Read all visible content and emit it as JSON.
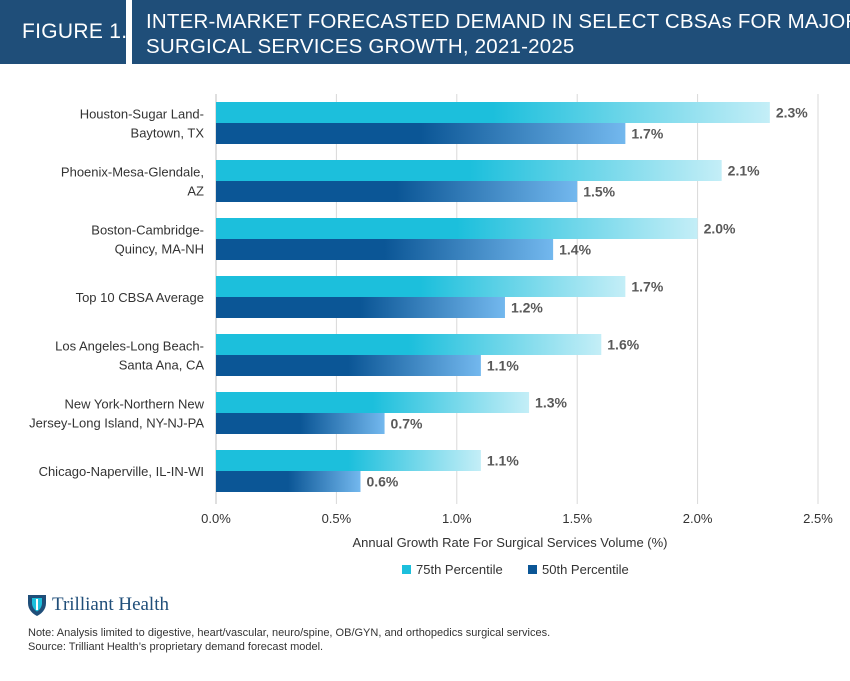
{
  "header": {
    "figure_label": "FIGURE 1.",
    "title_line1": "INTER-MARKET FORECASTED DEMAND IN SELECT CBSAs FOR MAJOR",
    "title_line2": "SURGICAL SERVICES GROWTH, 2021-2025"
  },
  "chart_data": {
    "type": "bar",
    "orientation": "horizontal",
    "title": "INTER-MARKET FORECASTED DEMAND IN SELECT CBSAs FOR MAJOR SURGICAL SERVICES GROWTH, 2021-2025",
    "categories": [
      [
        "Houston-Sugar Land-",
        "Baytown, TX"
      ],
      [
        "Phoenix-Mesa-Glendale,",
        "AZ"
      ],
      [
        "Boston-Cambridge-",
        "Quincy, MA-NH"
      ],
      [
        "Top 10 CBSA Average"
      ],
      [
        "Los Angeles-Long Beach-",
        "Santa Ana, CA"
      ],
      [
        "New York-Northern New",
        "Jersey-Long Island, NY-NJ-PA"
      ],
      [
        "Chicago-Naperville, IL-IN-WI"
      ]
    ],
    "series": [
      {
        "name": "75th Percentile",
        "values": [
          2.3,
          2.1,
          2.0,
          1.7,
          1.6,
          1.3,
          1.1
        ],
        "labels": [
          "2.3%",
          "2.1%",
          "2.0%",
          "1.7%",
          "1.6%",
          "1.3%",
          "1.1%"
        ],
        "color": "#1cbfdc",
        "color_light": "#c4eef7"
      },
      {
        "name": "50th Percentile",
        "values": [
          1.7,
          1.5,
          1.4,
          1.2,
          1.1,
          0.7,
          0.6
        ],
        "labels": [
          "1.7%",
          "1.5%",
          "1.4%",
          "1.2%",
          "1.1%",
          "0.7%",
          "0.6%"
        ],
        "color": "#0b5696",
        "color_light": "#73b8ee"
      }
    ],
    "xlim": [
      0,
      2.5
    ],
    "xticks": [
      0,
      0.5,
      1.0,
      1.5,
      2.0,
      2.5
    ],
    "xtick_labels": [
      "0.0%",
      "0.5%",
      "1.0%",
      "1.5%",
      "2.0%",
      "2.5%"
    ],
    "xlabel": "Annual Growth Rate For Surgical Services Volume (%)",
    "ylabel": "",
    "legend_position": "bottom-center"
  },
  "branding": {
    "logo_text": "Trilliant Health"
  },
  "notes": {
    "line1": "Note: Analysis limited to digestive, heart/vascular, neuro/spine, OB/GYN, and orthopedics surgical services.",
    "line2": "Source: Trilliant Health’s proprietary demand forecast model."
  },
  "colors": {
    "header_bg": "#1f4e79",
    "axis_text": "#333333",
    "value_label": "#595959"
  }
}
